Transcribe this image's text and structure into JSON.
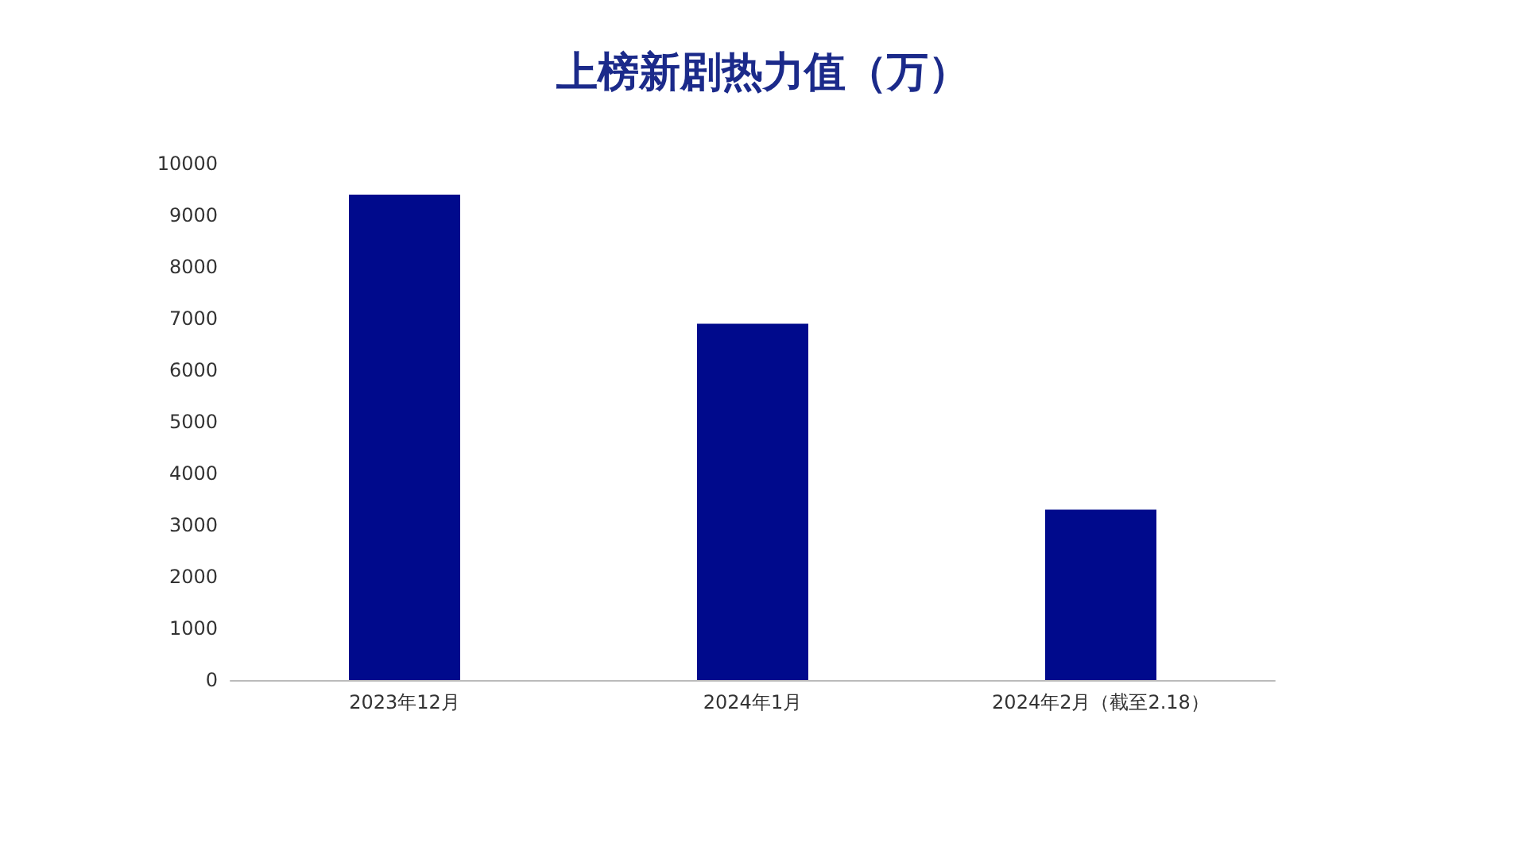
{
  "chart_data": {
    "type": "bar",
    "title": "上榜新剧热力值（万）",
    "categories": [
      "2023年12月",
      "2024年1月",
      "2024年2月（截至2.18）"
    ],
    "values": [
      9400,
      6900,
      3300
    ],
    "color": "#000a8c",
    "ylim": [
      0,
      10000
    ],
    "yticks": [
      0,
      1000,
      2000,
      3000,
      4000,
      5000,
      6000,
      7000,
      8000,
      9000,
      10000
    ],
    "grid": false
  }
}
